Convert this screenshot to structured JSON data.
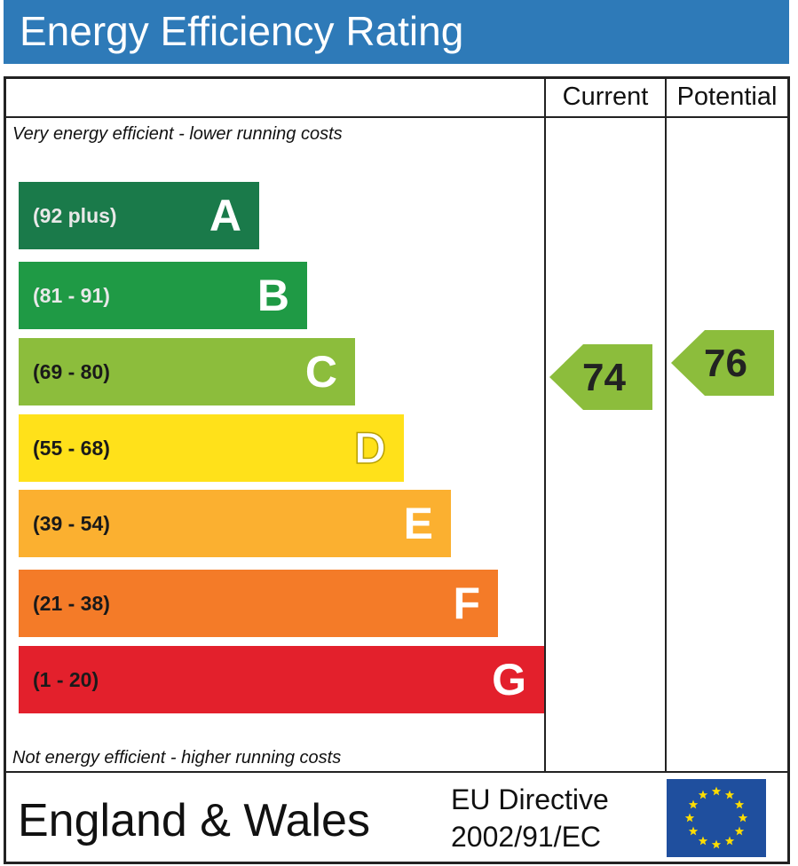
{
  "title": "Energy Efficiency Rating",
  "columns": {
    "current": "Current",
    "potential": "Potential"
  },
  "captions": {
    "top": "Very energy efficient - lower running costs",
    "bottom": "Not energy efficient - higher running costs"
  },
  "colors": {
    "title_bar": "#2e7ab8",
    "eu_flag": "#1f4f9e",
    "eu_stars": "#ffdd00"
  },
  "chart_data": {
    "type": "bar",
    "title": "Energy Efficiency Rating",
    "bands": [
      {
        "letter": "A",
        "range": "(92 plus)",
        "color": "#1a7a4a",
        "range_color": "#e8e8e8"
      },
      {
        "letter": "B",
        "range": "(81 - 91)",
        "color": "#1f9a45",
        "range_color": "#e8e8e8"
      },
      {
        "letter": "C",
        "range": "(69 - 80)",
        "color": "#8cbd3c",
        "range_color": "#1a1a1a"
      },
      {
        "letter": "D",
        "range": "(55 - 68)",
        "color": "#ffe11a",
        "range_color": "#1a1a1a"
      },
      {
        "letter": "E",
        "range": "(39 - 54)",
        "color": "#fbb030",
        "range_color": "#1a1a1a"
      },
      {
        "letter": "F",
        "range": "(21 - 38)",
        "color": "#f47b28",
        "range_color": "#1a1a1a"
      },
      {
        "letter": "G",
        "range": "(1 - 20)",
        "color": "#e3202c",
        "range_color": "#1a1a1a"
      }
    ],
    "current": {
      "value": 74,
      "band": "C",
      "color": "#8cbd3c"
    },
    "potential": {
      "value": 76,
      "band": "C",
      "color": "#8cbd3c"
    }
  },
  "footer": {
    "region": "England & Wales",
    "directive_line1": "EU Directive",
    "directive_line2": "2002/91/EC"
  }
}
